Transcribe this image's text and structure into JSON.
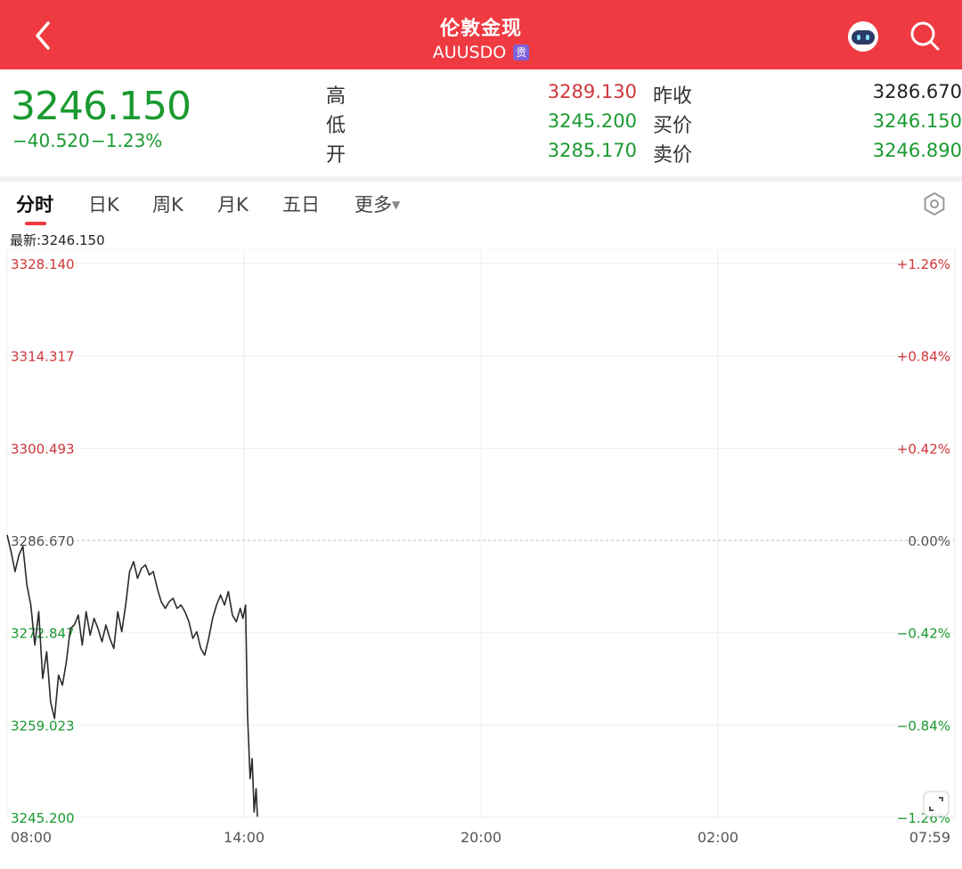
{
  "header": {
    "title": "伦敦金现",
    "symbol": "AUUSDO",
    "badge": "贵",
    "bg_color": "#ef3a41"
  },
  "icons": {
    "back": "chevron-left-icon",
    "robot": "robot-icon",
    "search": "search-icon",
    "settings": "hexagon-settings-icon",
    "expand": "expand-icon"
  },
  "quote": {
    "last": "3246.150",
    "change": "−40.520",
    "change_pct": "−1.23%",
    "high_label": "高",
    "high": "3289.130",
    "low_label": "低",
    "low": "3245.200",
    "open_label": "开",
    "open": "3285.170",
    "prev_close_label": "昨收",
    "prev_close": "3286.670",
    "bid_label": "买价",
    "bid": "3246.150",
    "ask_label": "卖价",
    "ask": "3246.890",
    "up_color": "#d0363b",
    "down_color": "#1a9a30"
  },
  "tabs": [
    {
      "label": "分时",
      "active": true
    },
    {
      "label": "日K"
    },
    {
      "label": "周K"
    },
    {
      "label": "月K"
    },
    {
      "label": "五日"
    },
    {
      "label": "更多"
    }
  ],
  "latest_label": "最新:3246.150",
  "chart_data": {
    "type": "line",
    "reference_price": 3286.67,
    "ylim": [
      3245.2,
      3328.14
    ],
    "y_ticks": [
      {
        "price": "3328.140",
        "pct": "+1.26%",
        "value": 3328.14
      },
      {
        "price": "3314.317",
        "pct": "+0.84%",
        "value": 3314.317
      },
      {
        "price": "3300.493",
        "pct": "+0.42%",
        "value": 3300.493
      },
      {
        "price": "3286.670",
        "pct": "0.00%",
        "value": 3286.67
      },
      {
        "price": "3272.847",
        "pct": "−0.42%",
        "value": 3272.847
      },
      {
        "price": "3259.023",
        "pct": "−0.84%",
        "value": 3259.023
      },
      {
        "price": "3245.200",
        "pct": "−1.26%",
        "value": 3245.2
      }
    ],
    "x_ticks": [
      "08:00",
      "14:00",
      "20:00",
      "02:00",
      "07:59"
    ],
    "x_range_minutes": [
      0,
      1439
    ],
    "series": [
      {
        "points": [
          [
            0,
            3287.5
          ],
          [
            6,
            3285.0
          ],
          [
            12,
            3282.0
          ],
          [
            18,
            3284.5
          ],
          [
            24,
            3285.8
          ],
          [
            30,
            3280.0
          ],
          [
            36,
            3277.0
          ],
          [
            42,
            3271.0
          ],
          [
            48,
            3276.0
          ],
          [
            54,
            3266.0
          ],
          [
            60,
            3270.0
          ],
          [
            66,
            3262.5
          ],
          [
            72,
            3260.0
          ],
          [
            78,
            3266.5
          ],
          [
            84,
            3265.0
          ],
          [
            90,
            3268.5
          ],
          [
            96,
            3273.5
          ],
          [
            102,
            3274.0
          ],
          [
            108,
            3275.5
          ],
          [
            114,
            3271.0
          ],
          [
            120,
            3276.0
          ],
          [
            126,
            3272.5
          ],
          [
            132,
            3275.0
          ],
          [
            138,
            3273.5
          ],
          [
            144,
            3271.5
          ],
          [
            150,
            3274.0
          ],
          [
            156,
            3272.0
          ],
          [
            162,
            3270.5
          ],
          [
            168,
            3276.0
          ],
          [
            174,
            3273.0
          ],
          [
            180,
            3277.0
          ],
          [
            186,
            3282.0
          ],
          [
            192,
            3283.5
          ],
          [
            198,
            3281.0
          ],
          [
            204,
            3282.5
          ],
          [
            210,
            3283.0
          ],
          [
            216,
            3281.5
          ],
          [
            222,
            3282.0
          ],
          [
            228,
            3279.5
          ],
          [
            234,
            3277.5
          ],
          [
            240,
            3276.5
          ],
          [
            246,
            3277.5
          ],
          [
            252,
            3278.0
          ],
          [
            258,
            3276.5
          ],
          [
            264,
            3277.0
          ],
          [
            270,
            3276.0
          ],
          [
            276,
            3274.5
          ],
          [
            282,
            3272.0
          ],
          [
            288,
            3273.0
          ],
          [
            294,
            3270.5
          ],
          [
            300,
            3269.5
          ],
          [
            306,
            3272.0
          ],
          [
            312,
            3275.0
          ],
          [
            318,
            3277.0
          ],
          [
            324,
            3278.5
          ],
          [
            330,
            3277.0
          ],
          [
            336,
            3279.0
          ],
          [
            342,
            3275.5
          ],
          [
            348,
            3274.5
          ],
          [
            354,
            3276.5
          ],
          [
            358,
            3275.0
          ],
          [
            362,
            3277.0
          ],
          [
            365,
            3260.5
          ],
          [
            369,
            3251.0
          ],
          [
            372,
            3254.0
          ],
          [
            375,
            3246.0
          ],
          [
            378,
            3249.5
          ],
          [
            380,
            3245.3
          ]
        ]
      }
    ],
    "grid": true
  }
}
